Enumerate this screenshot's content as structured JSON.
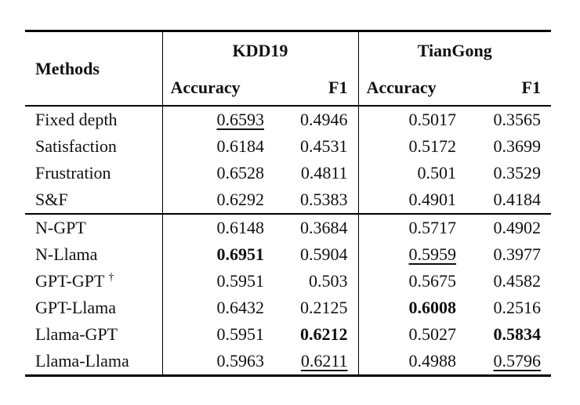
{
  "table": {
    "methods_header": "Methods",
    "column_groups": [
      {
        "label": "KDD19",
        "subcolumns": [
          "Accuracy",
          "F1"
        ]
      },
      {
        "label": "TianGong",
        "subcolumns": [
          "Accuracy",
          "F1"
        ]
      }
    ],
    "groups": [
      {
        "rows": [
          {
            "method": "Fixed depth",
            "cells": [
              {
                "value": "0.6593",
                "emphasis": "underline"
              },
              {
                "value": "0.4946",
                "emphasis": ""
              },
              {
                "value": "0.5017",
                "emphasis": ""
              },
              {
                "value": "0.3565",
                "emphasis": ""
              }
            ]
          },
          {
            "method": "Satisfaction",
            "cells": [
              {
                "value": "0.6184",
                "emphasis": ""
              },
              {
                "value": "0.4531",
                "emphasis": ""
              },
              {
                "value": "0.5172",
                "emphasis": ""
              },
              {
                "value": "0.3699",
                "emphasis": ""
              }
            ]
          },
          {
            "method": "Frustration",
            "cells": [
              {
                "value": "0.6528",
                "emphasis": ""
              },
              {
                "value": "0.4811",
                "emphasis": ""
              },
              {
                "value": "0.501",
                "emphasis": ""
              },
              {
                "value": "0.3529",
                "emphasis": ""
              }
            ]
          },
          {
            "method": "S&F",
            "cells": [
              {
                "value": "0.6292",
                "emphasis": ""
              },
              {
                "value": "0.5383",
                "emphasis": ""
              },
              {
                "value": "0.4901",
                "emphasis": ""
              },
              {
                "value": "0.4184",
                "emphasis": ""
              }
            ]
          }
        ]
      },
      {
        "rows": [
          {
            "method": "N-GPT",
            "cells": [
              {
                "value": "0.6148",
                "emphasis": ""
              },
              {
                "value": "0.3684",
                "emphasis": ""
              },
              {
                "value": "0.5717",
                "emphasis": ""
              },
              {
                "value": "0.4902",
                "emphasis": ""
              }
            ]
          },
          {
            "method": "N-Llama",
            "cells": [
              {
                "value": "0.6951",
                "emphasis": "bold"
              },
              {
                "value": "0.5904",
                "emphasis": ""
              },
              {
                "value": "0.5959",
                "emphasis": "underline"
              },
              {
                "value": "0.3977",
                "emphasis": ""
              }
            ]
          },
          {
            "method": "GPT-GPT",
            "dagger": "†",
            "cells": [
              {
                "value": "0.5951",
                "emphasis": ""
              },
              {
                "value": "0.503",
                "emphasis": ""
              },
              {
                "value": "0.5675",
                "emphasis": ""
              },
              {
                "value": "0.4582",
                "emphasis": ""
              }
            ]
          },
          {
            "method": "GPT-Llama",
            "cells": [
              {
                "value": "0.6432",
                "emphasis": ""
              },
              {
                "value": "0.2125",
                "emphasis": ""
              },
              {
                "value": "0.6008",
                "emphasis": "bold"
              },
              {
                "value": "0.2516",
                "emphasis": ""
              }
            ]
          },
          {
            "method": "Llama-GPT",
            "cells": [
              {
                "value": "0.5951",
                "emphasis": ""
              },
              {
                "value": "0.6212",
                "emphasis": "bold"
              },
              {
                "value": "0.5027",
                "emphasis": ""
              },
              {
                "value": "0.5834",
                "emphasis": "bold"
              }
            ]
          },
          {
            "method": "Llama-Llama",
            "cells": [
              {
                "value": "0.5963",
                "emphasis": ""
              },
              {
                "value": "0.6211",
                "emphasis": "underline"
              },
              {
                "value": "0.4988",
                "emphasis": ""
              },
              {
                "value": "0.5796",
                "emphasis": "underline"
              }
            ]
          }
        ]
      }
    ]
  }
}
